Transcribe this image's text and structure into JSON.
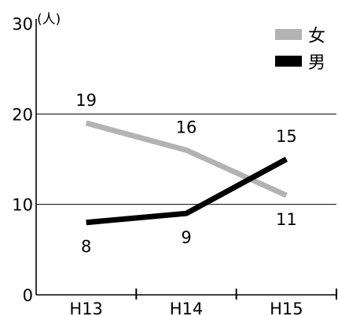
{
  "chart_data": {
    "type": "line",
    "categories": [
      "H13",
      "H14",
      "H15"
    ],
    "series": [
      {
        "name": "女",
        "values": [
          19,
          16,
          11
        ],
        "color": "#b3b3b3"
      },
      {
        "name": "男",
        "values": [
          8,
          9,
          15
        ],
        "color": "#000000"
      }
    ],
    "y_unit": "(人)",
    "yticks": [
      0,
      10,
      20,
      30
    ],
    "ylim": [
      0,
      30
    ],
    "grid": true,
    "legend_position": "top-right"
  }
}
